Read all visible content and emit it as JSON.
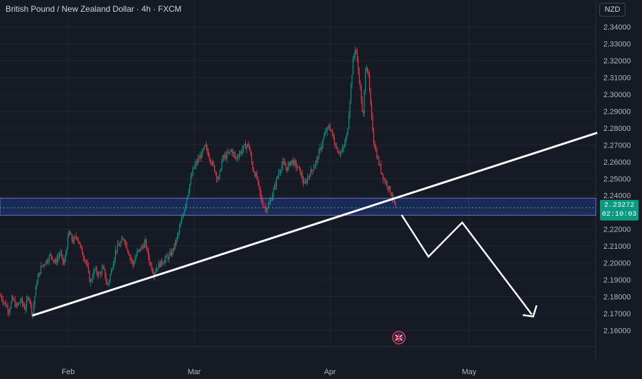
{
  "header": {
    "title": "British Pound / New Zealand Dollar · 4h · FXCM"
  },
  "currency_button": "NZD",
  "price_tag": {
    "price": "2.23272",
    "countdown": "02:10:03",
    "color": "#089981"
  },
  "colors": {
    "background": "#161a25",
    "up": "#089981",
    "down": "#f23645",
    "zone": "#2962ff",
    "grid": "#232632",
    "drawing": "#ffffff"
  },
  "chart_data": {
    "type": "candlestick",
    "title": "British Pound / New Zealand Dollar · 4h · FXCM",
    "symbol": "GBPNZD",
    "timeframe": "4h",
    "x_ticks": [
      "Feb",
      "Mar",
      "Apr",
      "May"
    ],
    "y_ticks": [
      "2.16000",
      "2.17000",
      "2.18000",
      "2.19000",
      "2.20000",
      "2.21000",
      "2.22000",
      "2.23000",
      "2.24000",
      "2.25000",
      "2.26000",
      "2.27000",
      "2.28000",
      "2.29000",
      "2.30000",
      "2.31000",
      "2.32000",
      "2.33000",
      "2.34000"
    ],
    "ylim": [
      2.1566,
      2.3461
    ],
    "last_price": 2.23272,
    "price_path": [
      [
        0,
        2.181
      ],
      [
        7,
        2.176
      ],
      [
        13,
        2.172
      ],
      [
        18,
        2.179
      ],
      [
        24,
        2.174
      ],
      [
        30,
        2.178
      ],
      [
        36,
        2.173
      ],
      [
        42,
        2.181
      ],
      [
        47,
        2.169
      ],
      [
        53,
        2.188
      ],
      [
        60,
        2.198
      ],
      [
        67,
        2.201
      ],
      [
        74,
        2.205
      ],
      [
        80,
        2.2
      ],
      [
        87,
        2.206
      ],
      [
        93,
        2.199
      ],
      [
        100,
        2.218
      ],
      [
        106,
        2.213
      ],
      [
        112,
        2.216
      ],
      [
        119,
        2.206
      ],
      [
        125,
        2.201
      ],
      [
        131,
        2.188
      ],
      [
        137,
        2.196
      ],
      [
        144,
        2.193
      ],
      [
        150,
        2.197
      ],
      [
        156,
        2.186
      ],
      [
        162,
        2.196
      ],
      [
        168,
        2.208
      ],
      [
        174,
        2.211
      ],
      [
        180,
        2.215
      ],
      [
        186,
        2.207
      ],
      [
        193,
        2.199
      ],
      [
        199,
        2.206
      ],
      [
        205,
        2.209
      ],
      [
        211,
        2.212
      ],
      [
        217,
        2.201
      ],
      [
        223,
        2.194
      ],
      [
        229,
        2.198
      ],
      [
        236,
        2.201
      ],
      [
        242,
        2.203
      ],
      [
        248,
        2.205
      ],
      [
        255,
        2.212
      ],
      [
        261,
        2.221
      ],
      [
        267,
        2.231
      ],
      [
        274,
        2.244
      ],
      [
        280,
        2.255
      ],
      [
        286,
        2.26
      ],
      [
        292,
        2.264
      ],
      [
        298,
        2.269
      ],
      [
        305,
        2.262
      ],
      [
        311,
        2.256
      ],
      [
        317,
        2.249
      ],
      [
        323,
        2.262
      ],
      [
        330,
        2.264
      ],
      [
        336,
        2.267
      ],
      [
        342,
        2.262
      ],
      [
        348,
        2.265
      ],
      [
        355,
        2.269
      ],
      [
        361,
        2.27
      ],
      [
        367,
        2.256
      ],
      [
        373,
        2.25
      ],
      [
        380,
        2.236
      ],
      [
        386,
        2.232
      ],
      [
        392,
        2.236
      ],
      [
        398,
        2.244
      ],
      [
        404,
        2.253
      ],
      [
        410,
        2.259
      ],
      [
        417,
        2.256
      ],
      [
        423,
        2.261
      ],
      [
        429,
        2.258
      ],
      [
        435,
        2.255
      ],
      [
        442,
        2.246
      ],
      [
        448,
        2.252
      ],
      [
        454,
        2.256
      ],
      [
        460,
        2.261
      ],
      [
        466,
        2.269
      ],
      [
        473,
        2.278
      ],
      [
        479,
        2.281
      ],
      [
        485,
        2.272
      ],
      [
        491,
        2.266
      ],
      [
        497,
        2.266
      ],
      [
        504,
        2.276
      ],
      [
        508,
        2.297
      ],
      [
        512,
        2.318
      ],
      [
        516,
        2.329
      ],
      [
        520,
        2.314
      ],
      [
        524,
        2.3
      ],
      [
        527,
        2.283
      ],
      [
        531,
        2.32
      ],
      [
        535,
        2.31
      ],
      [
        539,
        2.288
      ],
      [
        543,
        2.271
      ],
      [
        548,
        2.262
      ],
      [
        553,
        2.255
      ],
      [
        558,
        2.249
      ],
      [
        563,
        2.246
      ],
      [
        568,
        2.241
      ],
      [
        573,
        2.235
      ],
      [
        575,
        2.229
      ]
    ],
    "support_zone": {
      "low": 2.2283,
      "high": 2.2384,
      "color": "#2962ff"
    },
    "trendline": {
      "from": [
        47,
        2.1688
      ],
      "to": [
        867,
        2.2772
      ]
    },
    "projection_path": [
      [
        583,
        2.2285
      ],
      [
        622,
        2.2037
      ],
      [
        671,
        2.224
      ],
      [
        772,
        2.1695
      ]
    ]
  }
}
